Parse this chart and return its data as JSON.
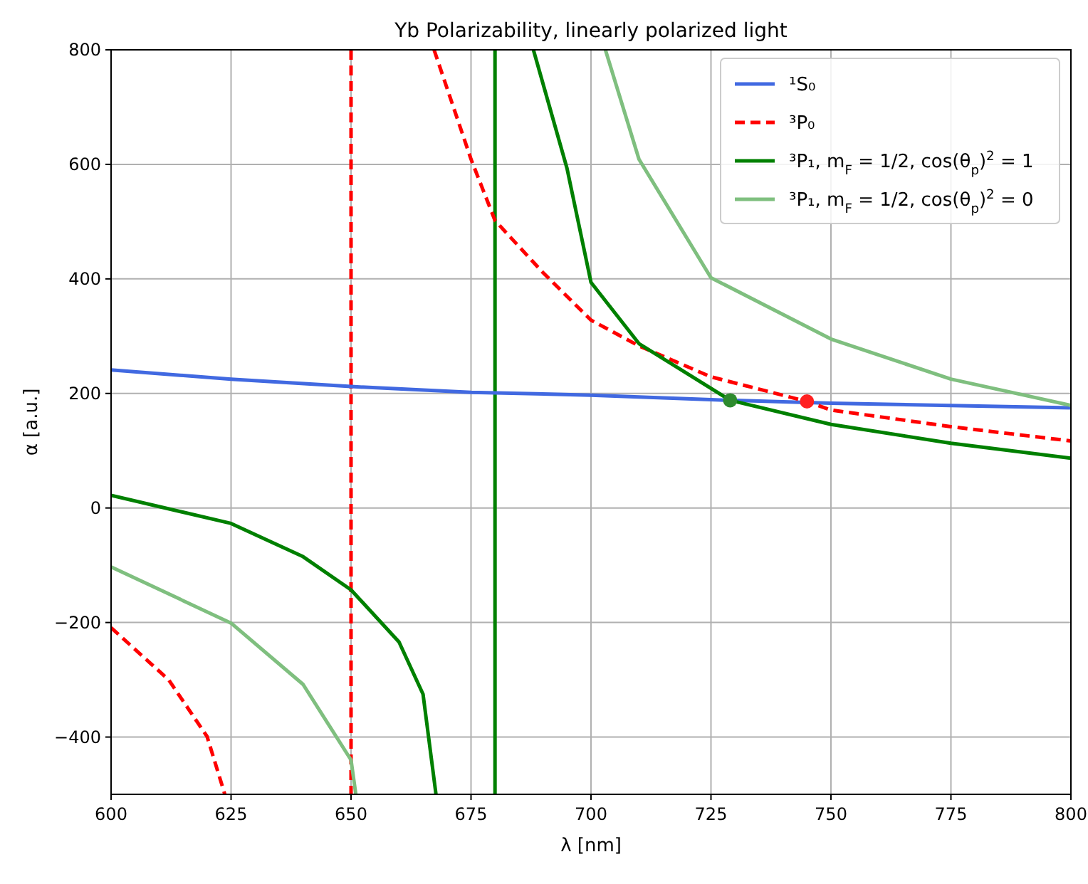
{
  "chart_data": {
    "type": "line",
    "title": "Yb Polarizability, linearly polarized light",
    "xlabel": "λ [nm]",
    "ylabel": "α [a.u.]",
    "xlim": [
      600,
      800
    ],
    "ylim": [
      -500,
      800
    ],
    "xticks": [
      600,
      625,
      650,
      675,
      700,
      725,
      750,
      775,
      800
    ],
    "yticks": [
      {
        "value": -400,
        "label": "−400"
      },
      {
        "value": -200,
        "label": "−200"
      },
      0,
      200,
      400,
      600,
      800
    ],
    "grid": true,
    "legend": "top right",
    "series": [
      {
        "name": "¹S₀",
        "color": "#4169e1",
        "line_style": "solid",
        "x": [
          600,
          625,
          650,
          675,
          700,
          725,
          750,
          775,
          800
        ],
        "values": [
          241,
          225,
          212,
          202,
          197,
          189,
          183,
          179,
          175
        ]
      },
      {
        "name": "³P₀",
        "color": "#ff0000",
        "line_style": "dashed",
        "x": [
          600,
          612,
          620,
          623.7,
          650,
          667.3,
          675,
          680,
          690,
          700,
          710,
          725,
          745,
          750,
          775,
          800
        ],
        "values": [
          -209,
          -300,
          -399,
          -500,
          null,
          800,
          609,
          502,
          411,
          328,
          283,
          229,
          186,
          171,
          142,
          117
        ]
      },
      {
        "name": "³P₁, m$_{F}$ = 1/2, cos(θ$_{p}$)$^{2}$ = 1",
        "color": "#008000",
        "line_style": "solid",
        "x": [
          600,
          625,
          640,
          650,
          660,
          665,
          667.7,
          680,
          688,
          695,
          700,
          710,
          729,
          750,
          775,
          800
        ],
        "values": [
          22,
          -27,
          -85,
          -143,
          -234,
          -325,
          -500,
          null,
          800,
          593,
          394,
          287,
          188,
          146,
          113,
          87
        ]
      },
      {
        "name": "³P₁, m$_{F}$ = 1/2, cos(θ$_{p}$)$^{2}$ = 0",
        "color": "#7fbf7f",
        "line_style": "solid",
        "x": [
          600,
          625,
          640,
          650,
          651,
          680,
          703,
          710,
          725,
          750,
          775,
          800
        ],
        "values": [
          -103,
          -201,
          -308,
          -440,
          -500,
          null,
          800,
          609,
          402,
          295,
          225,
          179
        ]
      },
      {
        "type": "scatter",
        "marker": "circle",
        "color": "#2e8b2e",
        "x": [
          729
        ],
        "values": [
          188
        ]
      },
      {
        "type": "scatter",
        "marker": "circle",
        "color": "#ff2020",
        "x": [
          745
        ],
        "values": [
          186
        ]
      }
    ],
    "ref_lines": [
      {
        "axis": "x",
        "value": 650,
        "color": "#ff0000",
        "line_style": "dashed"
      },
      {
        "axis": "x",
        "value": 680,
        "color": "#008000",
        "line_style": "solid"
      }
    ]
  }
}
